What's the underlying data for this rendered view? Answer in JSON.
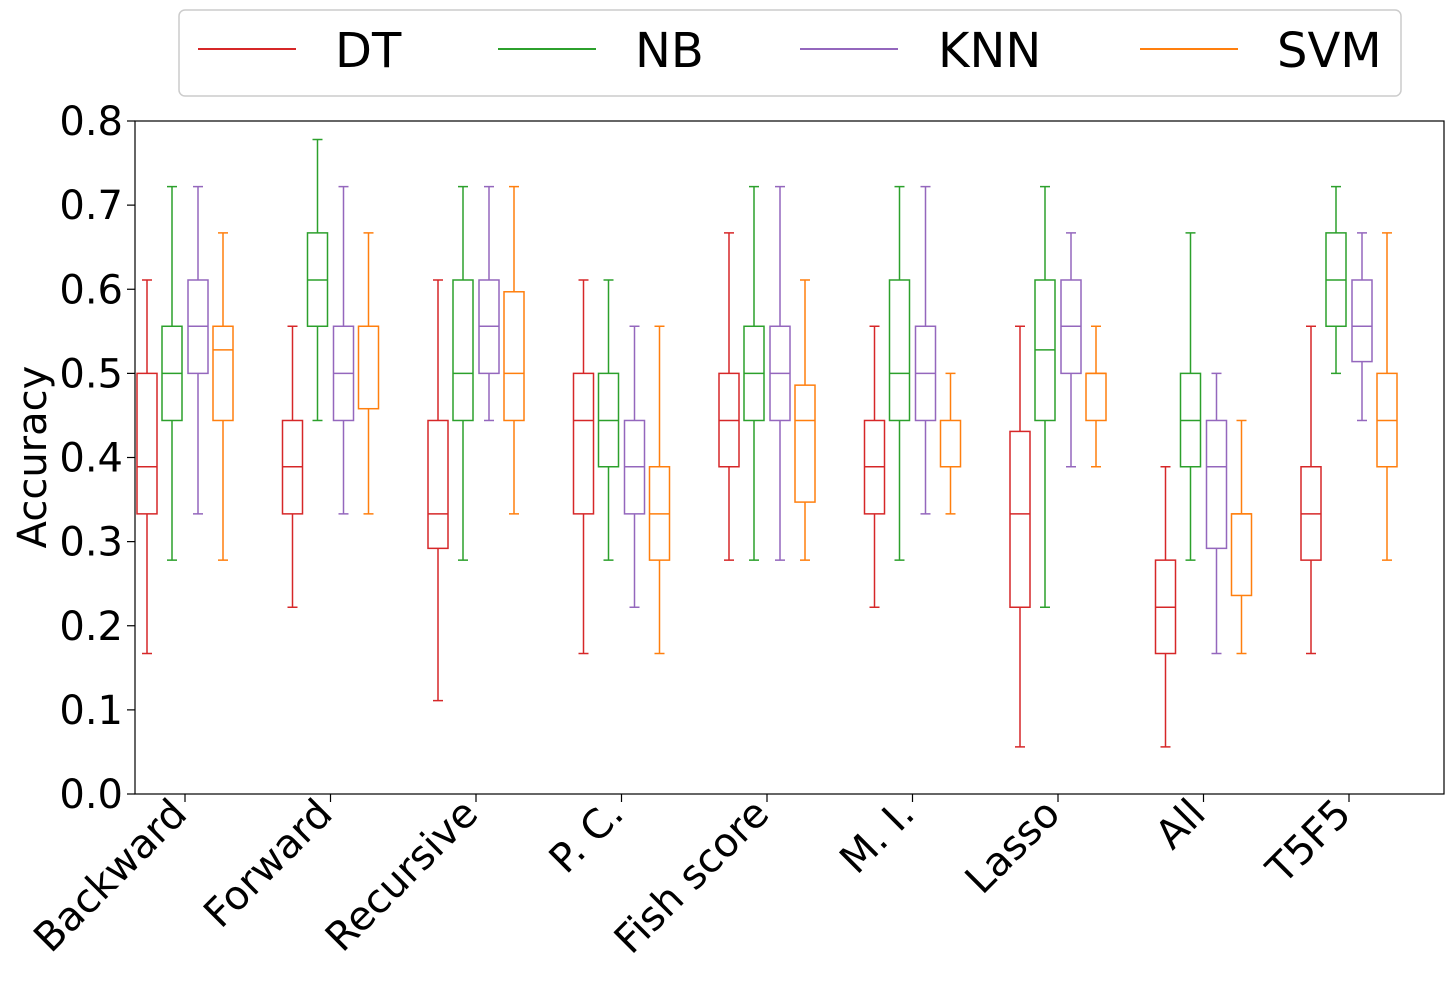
{
  "chart_data": {
    "type": "box",
    "categories": [
      "Backward",
      "Forward",
      "Recursive",
      "P. C.",
      "Fish score",
      "M. I.",
      "Lasso",
      "All",
      "T5F5"
    ],
    "ylabel": "Accuracy",
    "xlabel": "",
    "ylim": [
      0.0,
      0.8
    ],
    "yticks": [
      "0.0",
      "0.1",
      "0.2",
      "0.3",
      "0.4",
      "0.5",
      "0.6",
      "0.7",
      "0.8"
    ],
    "ytick_values": [
      0.0,
      0.1,
      0.2,
      0.3,
      0.4,
      0.5,
      0.6,
      0.7,
      0.8
    ],
    "grid": false,
    "legend_position": "top, above plot",
    "series": [
      {
        "name": "DT",
        "color": "#d62728",
        "boxes": [
          {
            "min": 0.167,
            "q1": 0.333,
            "median": 0.389,
            "q3": 0.5,
            "max": 0.611
          },
          {
            "min": 0.222,
            "q1": 0.333,
            "median": 0.389,
            "q3": 0.444,
            "max": 0.556
          },
          {
            "min": 0.111,
            "q1": 0.292,
            "median": 0.333,
            "q3": 0.444,
            "max": 0.611
          },
          {
            "min": 0.167,
            "q1": 0.333,
            "median": 0.444,
            "q3": 0.5,
            "max": 0.611
          },
          {
            "min": 0.278,
            "q1": 0.389,
            "median": 0.444,
            "q3": 0.5,
            "max": 0.667
          },
          {
            "min": 0.222,
            "q1": 0.333,
            "median": 0.389,
            "q3": 0.444,
            "max": 0.556
          },
          {
            "min": 0.056,
            "q1": 0.222,
            "median": 0.333,
            "q3": 0.431,
            "max": 0.556
          },
          {
            "min": 0.056,
            "q1": 0.167,
            "median": 0.222,
            "q3": 0.278,
            "max": 0.389
          },
          {
            "min": 0.167,
            "q1": 0.278,
            "median": 0.333,
            "q3": 0.389,
            "max": 0.556
          }
        ]
      },
      {
        "name": "NB",
        "color": "#2ca02c",
        "boxes": [
          {
            "min": 0.278,
            "q1": 0.444,
            "median": 0.5,
            "q3": 0.556,
            "max": 0.722
          },
          {
            "min": 0.444,
            "q1": 0.556,
            "median": 0.611,
            "q3": 0.667,
            "max": 0.778
          },
          {
            "min": 0.278,
            "q1": 0.444,
            "median": 0.5,
            "q3": 0.611,
            "max": 0.722
          },
          {
            "min": 0.278,
            "q1": 0.389,
            "median": 0.444,
            "q3": 0.5,
            "max": 0.611
          },
          {
            "min": 0.278,
            "q1": 0.444,
            "median": 0.5,
            "q3": 0.556,
            "max": 0.722
          },
          {
            "min": 0.278,
            "q1": 0.444,
            "median": 0.5,
            "q3": 0.611,
            "max": 0.722
          },
          {
            "min": 0.222,
            "q1": 0.444,
            "median": 0.528,
            "q3": 0.611,
            "max": 0.722
          },
          {
            "min": 0.278,
            "q1": 0.389,
            "median": 0.444,
            "q3": 0.5,
            "max": 0.667
          },
          {
            "min": 0.5,
            "q1": 0.556,
            "median": 0.611,
            "q3": 0.667,
            "max": 0.722
          }
        ]
      },
      {
        "name": "KNN",
        "color": "#9467bd",
        "boxes": [
          {
            "min": 0.333,
            "q1": 0.5,
            "median": 0.556,
            "q3": 0.611,
            "max": 0.722
          },
          {
            "min": 0.333,
            "q1": 0.444,
            "median": 0.5,
            "q3": 0.556,
            "max": 0.722
          },
          {
            "min": 0.444,
            "q1": 0.5,
            "median": 0.556,
            "q3": 0.611,
            "max": 0.722
          },
          {
            "min": 0.222,
            "q1": 0.333,
            "median": 0.389,
            "q3": 0.444,
            "max": 0.556
          },
          {
            "min": 0.278,
            "q1": 0.444,
            "median": 0.5,
            "q3": 0.556,
            "max": 0.722
          },
          {
            "min": 0.333,
            "q1": 0.444,
            "median": 0.5,
            "q3": 0.556,
            "max": 0.722
          },
          {
            "min": 0.389,
            "q1": 0.5,
            "median": 0.556,
            "q3": 0.611,
            "max": 0.667
          },
          {
            "min": 0.167,
            "q1": 0.292,
            "median": 0.389,
            "q3": 0.444,
            "max": 0.5
          },
          {
            "min": 0.444,
            "q1": 0.514,
            "median": 0.556,
            "q3": 0.611,
            "max": 0.667
          }
        ]
      },
      {
        "name": "SVM",
        "color": "#ff7f0e",
        "boxes": [
          {
            "min": 0.278,
            "q1": 0.444,
            "median": 0.528,
            "q3": 0.556,
            "max": 0.667
          },
          {
            "min": 0.333,
            "q1": 0.458,
            "median": 0.556,
            "q3": 0.556,
            "max": 0.667
          },
          {
            "min": 0.333,
            "q1": 0.444,
            "median": 0.5,
            "q3": 0.597,
            "max": 0.722
          },
          {
            "min": 0.167,
            "q1": 0.278,
            "median": 0.333,
            "q3": 0.389,
            "max": 0.556
          },
          {
            "min": 0.278,
            "q1": 0.347,
            "median": 0.444,
            "q3": 0.486,
            "max": 0.611
          },
          {
            "min": 0.333,
            "q1": 0.389,
            "median": 0.389,
            "q3": 0.444,
            "max": 0.5
          },
          {
            "min": 0.389,
            "q1": 0.444,
            "median": 0.5,
            "q3": 0.5,
            "max": 0.556
          },
          {
            "min": 0.167,
            "q1": 0.236,
            "median": 0.333,
            "q3": 0.333,
            "max": 0.444
          },
          {
            "min": 0.278,
            "q1": 0.389,
            "median": 0.444,
            "q3": 0.5,
            "max": 0.667
          }
        ]
      }
    ]
  }
}
